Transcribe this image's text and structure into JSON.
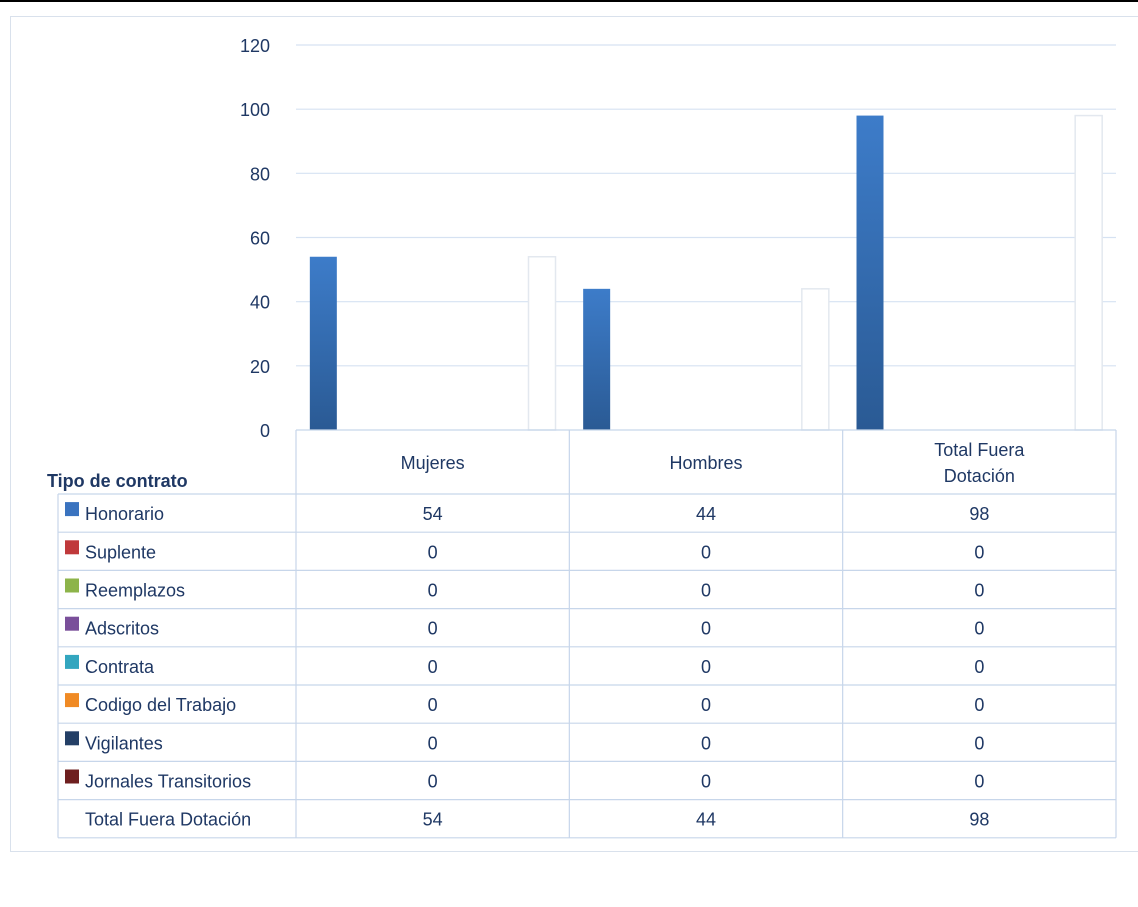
{
  "chart_data": {
    "type": "bar",
    "categories": [
      "Mujeres",
      "Hombres",
      "Total Fuera Dotación"
    ],
    "category_lines": [
      [
        "Mujeres"
      ],
      [
        "Hombres"
      ],
      [
        "Total Fuera",
        "Dotación"
      ]
    ],
    "table_header": "Tipo de contrato",
    "series": [
      {
        "name": "Honorario",
        "values": [
          54,
          44,
          98
        ],
        "color": "#3a73bf"
      },
      {
        "name": "Suplente",
        "values": [
          0,
          0,
          0
        ],
        "color": "#c0393b"
      },
      {
        "name": "Reemplazos",
        "values": [
          0,
          0,
          0
        ],
        "color": "#8db44a"
      },
      {
        "name": "Adscritos",
        "values": [
          0,
          0,
          0
        ],
        "color": "#7a4f9a"
      },
      {
        "name": "Contrata",
        "values": [
          0,
          0,
          0
        ],
        "color": "#33a6bf"
      },
      {
        "name": "Codigo del Trabajo",
        "values": [
          0,
          0,
          0
        ],
        "color": "#f08a24"
      },
      {
        "name": "Vigilantes",
        "values": [
          0,
          0,
          0
        ],
        "color": "#243f66"
      },
      {
        "name": "Jornales Transitorios",
        "values": [
          0,
          0,
          0
        ],
        "color": "#6e1f1f"
      },
      {
        "name": "Total Fuera Dotación",
        "values": [
          54,
          44,
          98
        ],
        "color": "#ffffff"
      }
    ],
    "ylim": [
      0,
      120
    ],
    "yticks": [
      0,
      20,
      40,
      60,
      80,
      100,
      120
    ],
    "grid": true,
    "legend": "data-table"
  },
  "colors": {
    "text": "#1f3864",
    "grid": "#d6e2f2",
    "table_border": "#c7d6ea"
  }
}
